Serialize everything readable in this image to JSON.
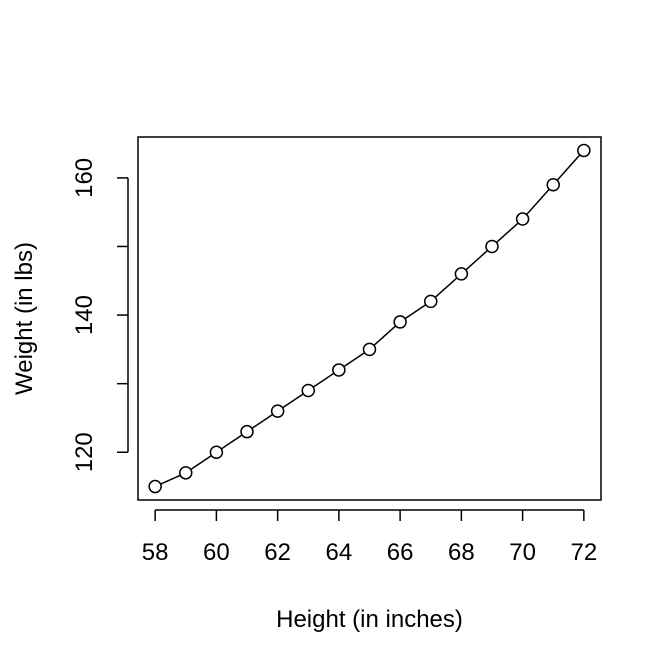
{
  "chart_data": {
    "type": "line",
    "title": "",
    "xlabel": "Height (in inches)",
    "ylabel": "Weight (in lbs)",
    "x": [
      58,
      59,
      60,
      61,
      62,
      63,
      64,
      65,
      66,
      67,
      68,
      69,
      70,
      71,
      72
    ],
    "series": [
      {
        "values": [
          115,
          117,
          120,
          123,
          126,
          129,
          132,
          135,
          139,
          142,
          146,
          150,
          154,
          159,
          164
        ]
      }
    ],
    "xlim": [
      57.44,
      72.56
    ],
    "ylim": [
      113.04,
      165.96
    ],
    "xticks": [
      58,
      60,
      62,
      64,
      66,
      68,
      70,
      72
    ],
    "yticks": [
      120,
      140,
      160
    ],
    "yminor": [
      130,
      150
    ],
    "markers": "open-circle",
    "grid": false,
    "legend": "none",
    "colors": {
      "line": "#000000",
      "marker": "#000000"
    }
  }
}
